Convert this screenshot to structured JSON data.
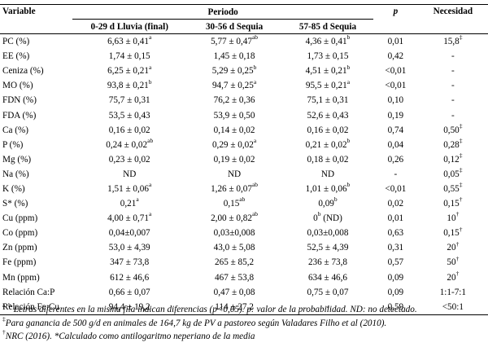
{
  "header": {
    "variable": "Variable",
    "periodo": "Periodo",
    "p": "p",
    "necesidad": "Necesidad",
    "periods": [
      "0-29 d Lluvia (final)",
      "30-56 d Sequia",
      "57-85 d Sequia"
    ]
  },
  "rows": [
    {
      "label": "PC (%)",
      "v1": "6,63 ± 0,41",
      "s1": "a",
      "v2": "5,77 ± 0,47",
      "s2": "ab",
      "v3": "4,36 ± 0,41",
      "s3": "b",
      "p": "0,01",
      "n": "15,8",
      "ns": "‡"
    },
    {
      "label": "EE (%)",
      "v1": "1,74 ± 0,15",
      "s1": "",
      "v2": "1,45 ± 0,18",
      "s2": "",
      "v3": "1,73 ± 0,15",
      "s3": "",
      "p": "0,42",
      "n": "-",
      "ns": ""
    },
    {
      "label": "Ceniza (%)",
      "v1": "6,25 ± 0,21",
      "s1": "a",
      "v2": "5,29 ± 0,25",
      "s2": "b",
      "v3": "4,51 ± 0,21",
      "s3": "b",
      "p": "<0,01",
      "n": "-",
      "ns": ""
    },
    {
      "label": "MO (%)",
      "v1": "93,8 ± 0,21",
      "s1": "b",
      "v2": "94,7 ± 0,25",
      "s2": "a",
      "v3": "95,5 ± 0,21",
      "s3": "a",
      "p": "<0,01",
      "n": "-",
      "ns": ""
    },
    {
      "label": "FDN (%)",
      "v1": "75,7 ± 0,31",
      "s1": "",
      "v2": "76,2 ± 0,36",
      "s2": "",
      "v3": "75,1 ± 0,31",
      "s3": "",
      "p": "0,10",
      "n": "-",
      "ns": ""
    },
    {
      "label": "FDA (%)",
      "v1": "53,5 ± 0,43",
      "s1": "",
      "v2": "53,9 ± 0,50",
      "s2": "",
      "v3": "52,6 ± 0,43",
      "s3": "",
      "p": "0,19",
      "n": "-",
      "ns": ""
    },
    {
      "label": "Ca (%)",
      "v1": "0,16 ± 0,02",
      "s1": "",
      "v2": "0,14 ± 0,02",
      "s2": "",
      "v3": "0,16 ± 0,02",
      "s3": "",
      "p": "0,74",
      "n": "0,50",
      "ns": "‡"
    },
    {
      "label": "P (%)",
      "v1": "0,24 ± 0,02",
      "s1": "ab",
      "v2": "0,29 ± 0,02",
      "s2": "a",
      "v3": "0,21 ± 0,02",
      "s3": "b",
      "p": "0,04",
      "n": "0,28",
      "ns": "‡"
    },
    {
      "label": "Mg (%)",
      "v1": "0,23 ± 0,02",
      "s1": "",
      "v2": "0,19 ± 0,02",
      "s2": "",
      "v3": "0,18 ± 0,02",
      "s3": "",
      "p": "0,26",
      "n": "0,12",
      "ns": "‡"
    },
    {
      "label": "Na (%)",
      "v1": "ND",
      "s1": "",
      "v2": "ND",
      "s2": "",
      "v3": "ND",
      "s3": "",
      "p": "-",
      "n": "0,05",
      "ns": "‡"
    },
    {
      "label": "K (%)",
      "v1": "1,51 ± 0,06",
      "s1": "a",
      "v2": "1,26 ± 0,07",
      "s2": "ab",
      "v3": "1,01 ± 0,06",
      "s3": "b",
      "p": "<0,01",
      "n": "0,55",
      "ns": "‡"
    },
    {
      "label": "S* (%)",
      "v1": "0,21",
      "s1": "a",
      "v2": "0,15",
      "s2": "ab",
      "v3": "0,09",
      "s3": "b",
      "p": "0,02",
      "n": "0,15",
      "ns": "†"
    },
    {
      "label": "Cu (ppm)",
      "v1": "4,00 ± 0,71",
      "s1": "a",
      "v2": "2,00 ± 0,82",
      "s2": "ab",
      "v3": "0",
      "s3": "b",
      "v3x": " (ND)",
      "p": "0,01",
      "n": "10",
      "ns": "†"
    },
    {
      "label": "Co (ppm)",
      "v1": "0,04±0,007",
      "s1": "",
      "v2": "0,03±0,008",
      "s2": "",
      "v3": "0,03±0,008",
      "s3": "",
      "p": "0,63",
      "n": "0,15",
      "ns": "†"
    },
    {
      "label": "Zn (ppm)",
      "v1": "53,0 ± 4,39",
      "s1": "",
      "v2": "43,0 ± 5,08",
      "s2": "",
      "v3": "52,5 ± 4,39",
      "s3": "",
      "p": "0,31",
      "n": "20",
      "ns": "†"
    },
    {
      "label": "Fe (ppm)",
      "v1": "347 ± 73,8",
      "s1": "",
      "v2": "265 ± 85,2",
      "s2": "",
      "v3": "236 ± 73,8",
      "s3": "",
      "p": "0,57",
      "n": "50",
      "ns": "†"
    },
    {
      "label": "Mn (ppm)",
      "v1": "612 ± 46,6",
      "s1": "",
      "v2": "467 ± 53,8",
      "s2": "",
      "v3": "634 ± 46,6",
      "s3": "",
      "p": "0,09",
      "n": "20",
      "ns": "†"
    },
    {
      "label": "Relación Ca:P",
      "v1": "0,66 ± 0,07",
      "s1": "",
      "v2": "0,47 ± 0,08",
      "s2": "",
      "v3": "0,75 ± 0,07",
      "s3": "",
      "p": "0,09",
      "n": "1:1-7:1",
      "ns": ""
    },
    {
      "label": "Relación Fe:Cu",
      "v1": "94,4 ± 19,2",
      "s1": "",
      "v2": "114 ± 27,2",
      "s2": "",
      "v3": "-",
      "s3": "",
      "p": "0,59",
      "n": "<50:1",
      "ns": ""
    }
  ],
  "notes": {
    "n1_sup": "a, b",
    "n1": " Letras diferentes en la misma fila indican diferencias (p<0,05). p: valor de la probabilidad. ND: no detectado.",
    "n2_sup": "‡",
    "n2": "Para ganancia de 500 g/d en animales de 164,7 kg de PV a pastoreo según Valadares Filho et al (2010).",
    "n3_sup": "†",
    "n3": "NRC (2016). *Calculado como antilogaritmo neperiano de la media"
  }
}
